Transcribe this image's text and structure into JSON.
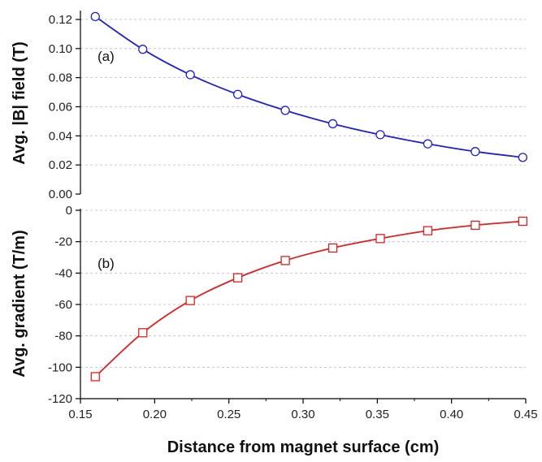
{
  "chart_data": [
    {
      "type": "line",
      "panel_label": "(a)",
      "title": "",
      "xlabel": "Distance from magnet surface (cm)",
      "ylabel": "Avg. |B| field (T)",
      "xlim": [
        0.15,
        0.45
      ],
      "ylim": [
        0.0,
        0.125
      ],
      "yticks": [
        0.0,
        0.02,
        0.04,
        0.06,
        0.08,
        0.1,
        0.12
      ],
      "ytick_labels": [
        "0.00",
        "0.02",
        "0.04",
        "0.06",
        "0.08",
        "0.10",
        "0.12"
      ],
      "grid": true,
      "legend": "none",
      "series": [
        {
          "color": "#1f1fd6",
          "marker": "circle",
          "x": [
            0.16,
            0.192,
            0.224,
            0.256,
            0.288,
            0.32,
            0.352,
            0.384,
            0.416,
            0.448
          ],
          "y": [
            0.122,
            0.0995,
            0.082,
            0.0685,
            0.0575,
            0.0483,
            0.0408,
            0.0345,
            0.0292,
            0.0252
          ]
        }
      ]
    },
    {
      "type": "line",
      "panel_label": "(b)",
      "title": "",
      "xlabel": "Distance from magnet surface (cm)",
      "ylabel": "Avg. gradient (T/m)",
      "xlim": [
        0.15,
        0.45
      ],
      "ylim": [
        -120,
        0
      ],
      "xticks": [
        0.15,
        0.2,
        0.25,
        0.3,
        0.35,
        0.4,
        0.45
      ],
      "xtick_labels": [
        "0.15",
        "0.20",
        "0.25",
        "0.30",
        "0.35",
        "0.40",
        "0.45"
      ],
      "yticks": [
        -120,
        -100,
        -80,
        -60,
        -40,
        -20,
        0
      ],
      "ytick_labels": [
        "-120",
        "-100",
        "-80",
        "-60",
        "-40",
        "-20",
        "0"
      ],
      "grid": true,
      "legend": "none",
      "series": [
        {
          "color": "#e02020",
          "marker": "square",
          "x": [
            0.16,
            0.192,
            0.224,
            0.256,
            0.288,
            0.32,
            0.352,
            0.384,
            0.416,
            0.448
          ],
          "y": [
            -106,
            -78,
            -57.5,
            -43,
            -32,
            -24,
            -18,
            -13,
            -9.5,
            -7
          ]
        }
      ]
    }
  ]
}
